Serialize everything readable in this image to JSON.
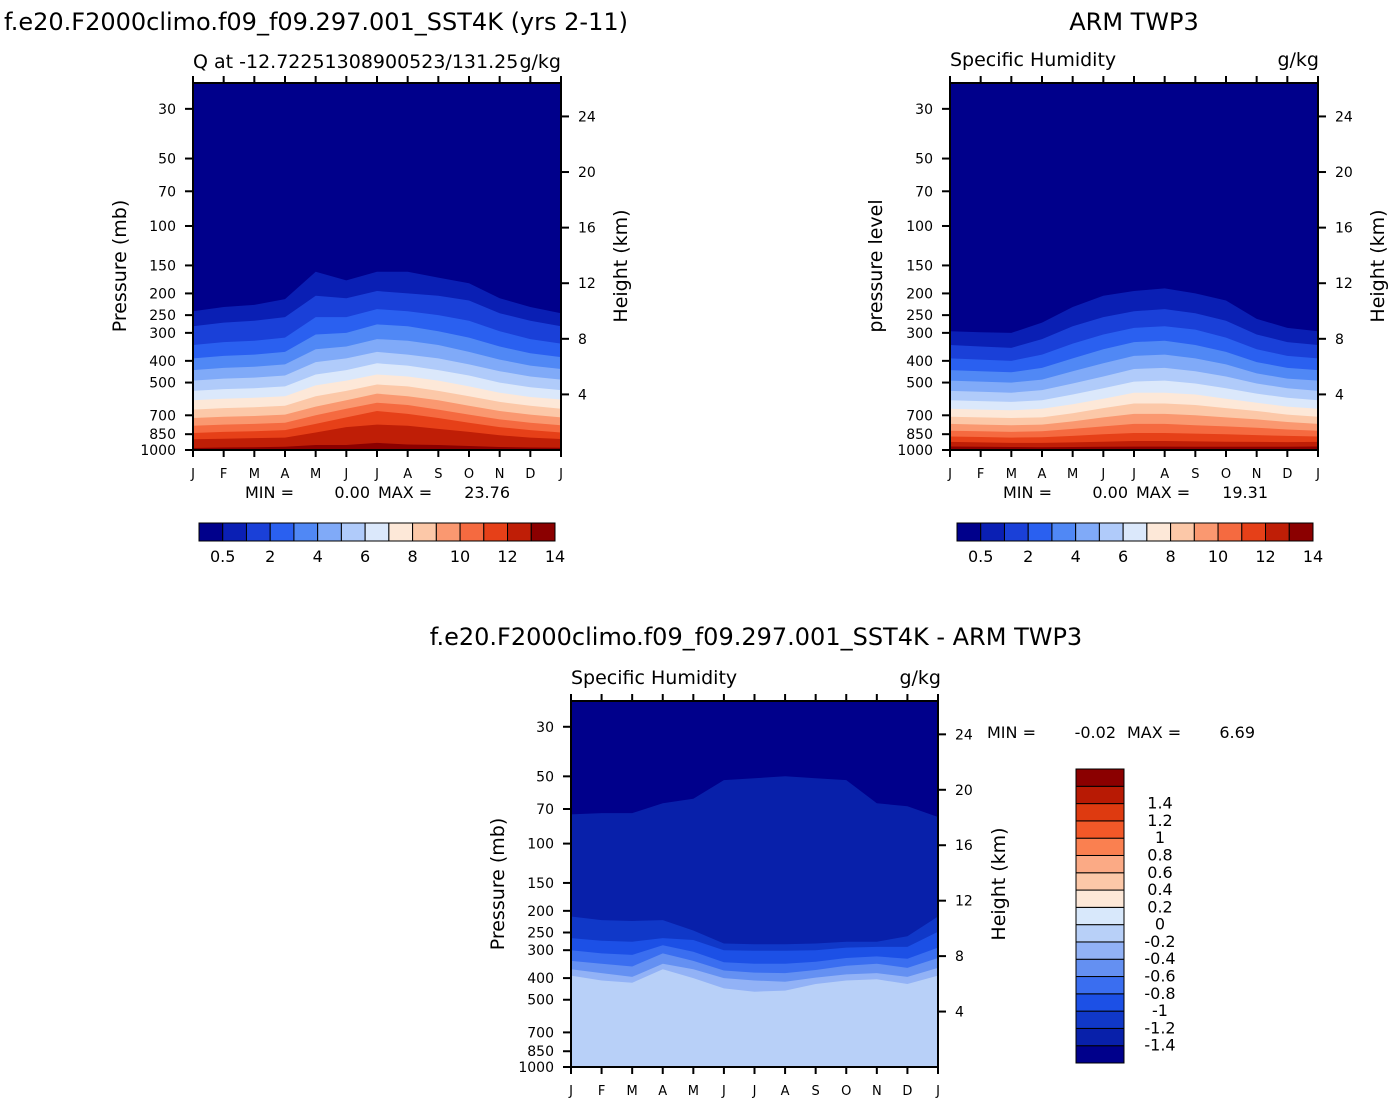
{
  "chart_data": [
    {
      "type": "heatmap",
      "suptitle": "f.e20.F2000climo.f09_f09.297.001_SST4K (yrs 2-11)",
      "title_left": "Q at -12.72251308900523/131.25",
      "title_right": "g/kg",
      "xlabel": "",
      "ylabel": "Pressure (mb)",
      "ylabel_right": "Height (km)",
      "x": [
        "J",
        "F",
        "M",
        "A",
        "M",
        "J",
        "J",
        "A",
        "S",
        "O",
        "N",
        "D",
        "J"
      ],
      "pressure_ticks": [
        "30",
        "50",
        "70",
        "100",
        "150",
        "200",
        "250",
        "300",
        "400",
        "500",
        "700",
        "850",
        "1000"
      ],
      "height_ticks": [
        "24",
        "20",
        "16",
        "12",
        "8",
        "4"
      ],
      "ylim": [
        1000,
        25
      ],
      "stats": {
        "min_label": "MIN =",
        "min": "0.00",
        "max_label": "MAX =",
        "max": "23.76"
      },
      "levels": [
        "0.5",
        "2",
        "4",
        "6",
        "8",
        "10",
        "12",
        "14"
      ],
      "colors": [
        "#00008b",
        "#0a1fb4",
        "#1a40d8",
        "#2a60f0",
        "#5088f5",
        "#80aaf8",
        "#b0cbfa",
        "#dbe8fb",
        "#fde8d8",
        "#fcc8a8",
        "#fa9870",
        "#f56a40",
        "#e64018",
        "#bf1e06",
        "#8b0000"
      ],
      "boundary_pressure": [
        [
          240,
          230,
          225,
          212,
          160,
          175,
          160,
          160,
          170,
          180,
          210,
          230,
          245
        ],
        [
          280,
          270,
          265,
          255,
          205,
          210,
          195,
          200,
          205,
          215,
          245,
          265,
          280
        ],
        [
          340,
          330,
          325,
          315,
          255,
          255,
          235,
          240,
          250,
          265,
          295,
          320,
          335
        ],
        [
          390,
          380,
          375,
          365,
          305,
          300,
          275,
          280,
          295,
          315,
          345,
          370,
          385
        ],
        [
          440,
          430,
          425,
          415,
          355,
          345,
          320,
          325,
          340,
          365,
          395,
          420,
          435
        ],
        [
          490,
          480,
          475,
          465,
          405,
          390,
          365,
          375,
          390,
          415,
          445,
          470,
          485
        ],
        [
          545,
          535,
          530,
          520,
          460,
          440,
          410,
          420,
          440,
          465,
          500,
          525,
          540
        ],
        [
          600,
          590,
          585,
          575,
          515,
          490,
          460,
          470,
          490,
          520,
          555,
          580,
          595
        ],
        [
          660,
          650,
          645,
          635,
          575,
          545,
          510,
          520,
          545,
          575,
          610,
          635,
          655
        ],
        [
          720,
          710,
          705,
          695,
          640,
          600,
          560,
          575,
          600,
          635,
          670,
          695,
          715
        ],
        [
          780,
          770,
          765,
          755,
          700,
          655,
          615,
          630,
          660,
          695,
          730,
          755,
          775
        ],
        [
          840,
          830,
          825,
          815,
          765,
          715,
          670,
          690,
          720,
          755,
          790,
          815,
          835
        ],
        [
          895,
          890,
          885,
          880,
          835,
          790,
          770,
          780,
          805,
          830,
          860,
          880,
          893
        ],
        [
          980,
          975,
          972,
          968,
          950,
          950,
          930,
          945,
          950,
          960,
          970,
          975,
          978
        ]
      ]
    },
    {
      "type": "heatmap",
      "suptitle": "ARM TWP3",
      "title_left": "Specific Humidity",
      "title_right": "g/kg",
      "xlabel": "",
      "ylabel": "pressure level",
      "ylabel_right": "Height (km)",
      "x": [
        "J",
        "F",
        "M",
        "A",
        "M",
        "J",
        "J",
        "A",
        "S",
        "O",
        "N",
        "D",
        "J"
      ],
      "pressure_ticks": [
        "30",
        "50",
        "70",
        "100",
        "150",
        "200",
        "250",
        "300",
        "400",
        "500",
        "700",
        "850",
        "1000"
      ],
      "height_ticks": [
        "24",
        "20",
        "16",
        "12",
        "8",
        "4"
      ],
      "ylim": [
        1000,
        25
      ],
      "stats": {
        "min_label": "MIN =",
        "min": "0.00",
        "max_label": "MAX =",
        "max": "19.31"
      },
      "levels": [
        "0.5",
        "2",
        "4",
        "6",
        "8",
        "10",
        "12",
        "14"
      ],
      "colors": [
        "#00008b",
        "#0a1fb4",
        "#1a40d8",
        "#2a60f0",
        "#5088f5",
        "#80aaf8",
        "#b0cbfa",
        "#dbe8fb",
        "#fde8d8",
        "#fcc8a8",
        "#fa9870",
        "#f56a40",
        "#e64018",
        "#bf1e06",
        "#8b0000"
      ],
      "boundary_pressure": [
        [
          295,
          298,
          300,
          270,
          230,
          205,
          195,
          190,
          200,
          215,
          260,
          285,
          295
        ],
        [
          340,
          345,
          350,
          320,
          280,
          255,
          240,
          235,
          245,
          265,
          305,
          330,
          340
        ],
        [
          390,
          395,
          400,
          375,
          335,
          305,
          285,
          280,
          290,
          315,
          355,
          380,
          390
        ],
        [
          440,
          445,
          450,
          430,
          390,
          355,
          330,
          325,
          340,
          365,
          405,
          430,
          440
        ],
        [
          490,
          495,
          500,
          485,
          445,
          410,
          380,
          375,
          390,
          415,
          455,
          480,
          490
        ],
        [
          545,
          550,
          555,
          540,
          505,
          470,
          435,
          430,
          445,
          470,
          505,
          530,
          545
        ],
        [
          600,
          605,
          610,
          600,
          565,
          530,
          495,
          490,
          505,
          530,
          560,
          585,
          600
        ],
        [
          655,
          660,
          665,
          655,
          625,
          590,
          555,
          555,
          565,
          590,
          615,
          640,
          655
        ],
        [
          710,
          715,
          720,
          715,
          685,
          650,
          620,
          620,
          630,
          650,
          670,
          695,
          710
        ],
        [
          765,
          770,
          775,
          770,
          745,
          715,
          690,
          690,
          700,
          715,
          730,
          750,
          765
        ],
        [
          820,
          825,
          830,
          825,
          805,
          785,
          765,
          765,
          775,
          785,
          795,
          810,
          820
        ],
        [
          870,
          875,
          880,
          878,
          865,
          850,
          840,
          840,
          845,
          850,
          858,
          865,
          870
        ],
        [
          920,
          925,
          930,
          930,
          925,
          918,
          912,
          912,
          915,
          918,
          920,
          922,
          920
        ],
        [
          965,
          967,
          970,
          972,
          970,
          968,
          966,
          966,
          967,
          968,
          968,
          967,
          965
        ]
      ]
    },
    {
      "type": "heatmap",
      "suptitle": "f.e20.F2000climo.f09_f09.297.001_SST4K - ARM TWP3",
      "title_left": "Specific Humidity",
      "title_right": "g/kg",
      "xlabel": "",
      "ylabel": "Pressure (mb)",
      "ylabel_right": "Height (km)",
      "x": [
        "J",
        "F",
        "M",
        "A",
        "M",
        "J",
        "J",
        "A",
        "S",
        "O",
        "N",
        "D",
        "J"
      ],
      "pressure_ticks": [
        "30",
        "50",
        "70",
        "100",
        "150",
        "200",
        "250",
        "300",
        "400",
        "500",
        "700",
        "850",
        "1000"
      ],
      "height_ticks": [
        "24",
        "20",
        "16",
        "12",
        "8",
        "4"
      ],
      "ylim": [
        1000,
        25
      ],
      "stats": {
        "min_label": "MIN =",
        "min": "-0.02",
        "max_label": "MAX =",
        "max": "6.69"
      },
      "levels": [
        "-1.4",
        "-1.2",
        "-1",
        "-0.8",
        "-0.6",
        "-0.4",
        "-0.2",
        "0",
        "0.2",
        "0.4",
        "0.6",
        "0.8",
        "1",
        "1.2",
        "1.4"
      ],
      "colors": [
        "#00008b",
        "#0820aa",
        "#1038c8",
        "#1c50e6",
        "#3a6ef0",
        "#6490f2",
        "#92b2f6",
        "#b8d0f8",
        "#d8e8fb",
        "#fde8d8",
        "#fcc8a8",
        "#fbaa85",
        "#fa8050",
        "#f25828",
        "#de3a10",
        "#b81a04",
        "#8b0000"
      ],
      "boundary_pressure": [
        [
          74,
          73,
          73,
          66,
          63,
          52,
          51,
          50,
          51,
          52,
          66,
          68,
          76
        ],
        [
          212,
          220,
          222,
          220,
          245,
          280,
          282,
          282,
          280,
          275,
          275,
          260,
          212
        ],
        [
          265,
          272,
          275,
          265,
          270,
          300,
          302,
          302,
          300,
          292,
          290,
          290,
          248
        ],
        [
          300,
          310,
          315,
          285,
          305,
          340,
          345,
          345,
          338,
          325,
          320,
          328,
          292
        ],
        [
          335,
          345,
          355,
          310,
          335,
          370,
          378,
          380,
          368,
          352,
          345,
          360,
          325
        ],
        [
          365,
          380,
          395,
          345,
          365,
          400,
          410,
          415,
          398,
          385,
          380,
          395,
          360
        ],
        [
          390,
          410,
          420,
          365,
          400,
          445,
          460,
          455,
          425,
          410,
          405,
          425,
          390
        ]
      ]
    }
  ]
}
